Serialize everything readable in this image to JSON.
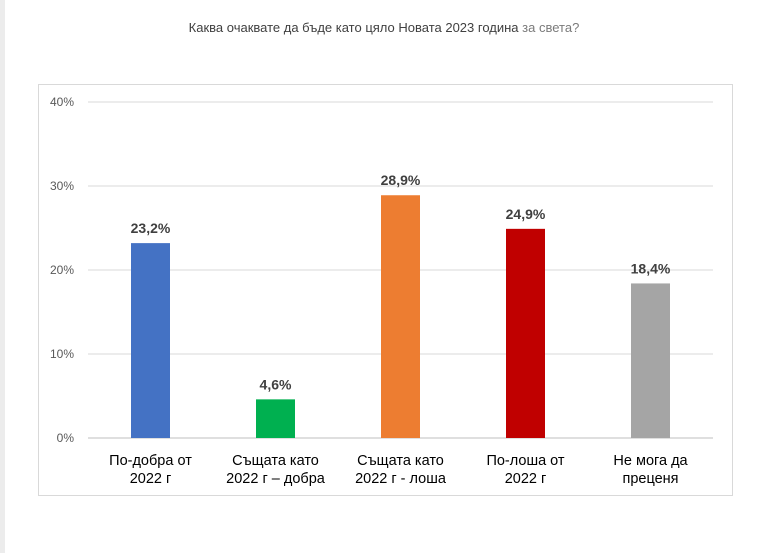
{
  "page": {
    "title_main": "Каква очаквате да бъде като цяло Новата 2023 година",
    "title_suffix": "за света?"
  },
  "chart_data": {
    "type": "bar",
    "categories": [
      [
        "По-добра от",
        "2022 г"
      ],
      [
        "Същата като",
        "2022 г – добра"
      ],
      [
        "Същата като",
        "2022 г - лоша"
      ],
      [
        "По-лоша от",
        "2022 г"
      ],
      [
        "Не мога да",
        "преценя"
      ]
    ],
    "values": [
      23.2,
      4.6,
      28.9,
      24.9,
      18.4
    ],
    "value_labels": [
      "23,2%",
      "4,6%",
      "28,9%",
      "24,9%",
      "18,4%"
    ],
    "colors": [
      "#4472c4",
      "#00b050",
      "#ed7d31",
      "#c00000",
      "#a5a5a5"
    ],
    "ylim": [
      0,
      40
    ],
    "yticks": [
      0,
      10,
      20,
      30,
      40
    ],
    "ytick_labels": [
      "0%",
      "10%",
      "20%",
      "30%",
      "40%"
    ],
    "grid": true,
    "legend": "none"
  }
}
